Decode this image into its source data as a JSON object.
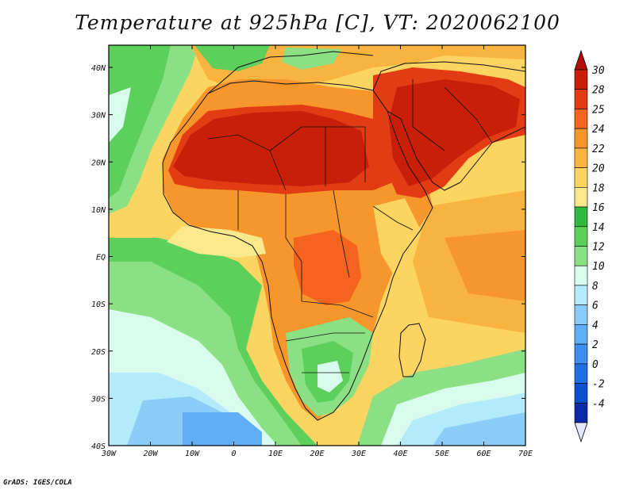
{
  "title": "Temperature at 925hPa [C], VT: 2020062100",
  "credit": "GrADS: IGES/COLA",
  "axes": {
    "lon_ticks": [
      "30W",
      "20W",
      "10W",
      "0",
      "10E",
      "20E",
      "30E",
      "40E",
      "50E",
      "60E",
      "70E"
    ],
    "lat_ticks": [
      "40N",
      "30N",
      "20N",
      "10N",
      "EQ",
      "10S",
      "20S",
      "30S",
      "40S"
    ]
  },
  "colorbar": {
    "levels": [
      "30",
      "28",
      "25",
      "24",
      "22",
      "20",
      "18",
      "16",
      "14",
      "12",
      "10",
      "8",
      "6",
      "4",
      "2",
      "0",
      "-2",
      "-4"
    ],
    "colors": [
      "#c81e0a",
      "#e33c14",
      "#f5641e",
      "#f7962b",
      "#f9b440",
      "#fbd461",
      "#fae98c",
      "#31b83f",
      "#5cd05a",
      "#8ae082",
      "#d8fbee",
      "#b4ebfb",
      "#8bcdf8",
      "#60aef5",
      "#3d8ef0",
      "#1f6ee5",
      "#0d4fcf",
      "#0b2aa8"
    ],
    "top_arrow_color": "#b01008",
    "bottom_arrow_color": "#e6e6fa"
  }
}
